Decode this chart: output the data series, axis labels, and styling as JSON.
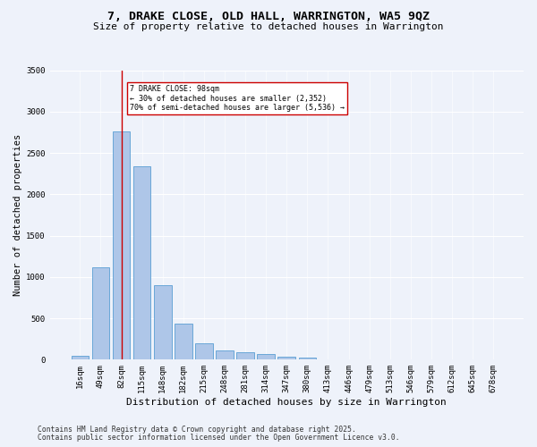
{
  "title1": "7, DRAKE CLOSE, OLD HALL, WARRINGTON, WA5 9QZ",
  "title2": "Size of property relative to detached houses in Warrington",
  "xlabel": "Distribution of detached houses by size in Warrington",
  "ylabel": "Number of detached properties",
  "categories": [
    "16sqm",
    "49sqm",
    "82sqm",
    "115sqm",
    "148sqm",
    "182sqm",
    "215sqm",
    "248sqm",
    "281sqm",
    "314sqm",
    "347sqm",
    "380sqm",
    "413sqm",
    "446sqm",
    "479sqm",
    "513sqm",
    "546sqm",
    "579sqm",
    "612sqm",
    "645sqm",
    "678sqm"
  ],
  "values": [
    50,
    1120,
    2760,
    2340,
    900,
    440,
    195,
    115,
    90,
    65,
    35,
    20,
    5,
    2,
    1,
    0,
    0,
    0,
    0,
    0,
    0
  ],
  "bar_color": "#aec6e8",
  "bar_edge_color": "#5a9fd4",
  "vline_x": 2,
  "vline_color": "#cc0000",
  "annotation_title": "7 DRAKE CLOSE: 98sqm",
  "annotation_line1": "← 30% of detached houses are smaller (2,352)",
  "annotation_line2": "70% of semi-detached houses are larger (5,536) →",
  "annotation_box_color": "#cc0000",
  "ylim": [
    0,
    3500
  ],
  "yticks": [
    0,
    500,
    1000,
    1500,
    2000,
    2500,
    3000,
    3500
  ],
  "footnote1": "Contains HM Land Registry data © Crown copyright and database right 2025.",
  "footnote2": "Contains public sector information licensed under the Open Government Licence v3.0.",
  "bg_color": "#eef2fa",
  "grid_color": "#ffffff",
  "title1_fontsize": 9.5,
  "title2_fontsize": 8,
  "axis_label_fontsize": 7.5,
  "tick_fontsize": 6.5,
  "footnote_fontsize": 5.8
}
